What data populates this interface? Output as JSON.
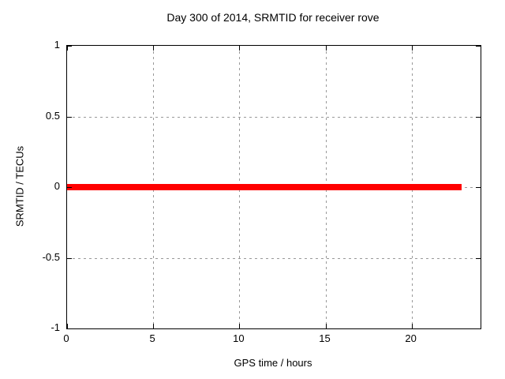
{
  "page": {
    "background": "#ffffff",
    "text_color": "#000000"
  },
  "chart_data": {
    "type": "line",
    "title": "Day 300 of 2014, SRMTID for receiver rove",
    "xlabel": "GPS time / hours",
    "ylabel": "SRMTID / TECUs",
    "xlim": [
      0,
      24
    ],
    "ylim": [
      -1,
      1
    ],
    "grid": true,
    "legend_position": "none",
    "axis_color": "#000000",
    "grid_color": "#999999",
    "x_ticks": [
      {
        "value": 0,
        "label": "0"
      },
      {
        "value": 5,
        "label": "5"
      },
      {
        "value": 10,
        "label": "10"
      },
      {
        "value": 15,
        "label": "15"
      },
      {
        "value": 20,
        "label": "20"
      }
    ],
    "y_ticks": [
      {
        "value": -1,
        "label": "-1"
      },
      {
        "value": -0.5,
        "label": "-0.5"
      },
      {
        "value": 0,
        "label": "0"
      },
      {
        "value": 0.5,
        "label": "0.5"
      },
      {
        "value": 1,
        "label": "1"
      }
    ],
    "series": [
      {
        "name": "SRMTID",
        "color": "#ff0000",
        "line_width": 8,
        "points": [
          {
            "x": 0,
            "y": 0
          },
          {
            "x": 22.9,
            "y": 0
          }
        ]
      }
    ]
  }
}
